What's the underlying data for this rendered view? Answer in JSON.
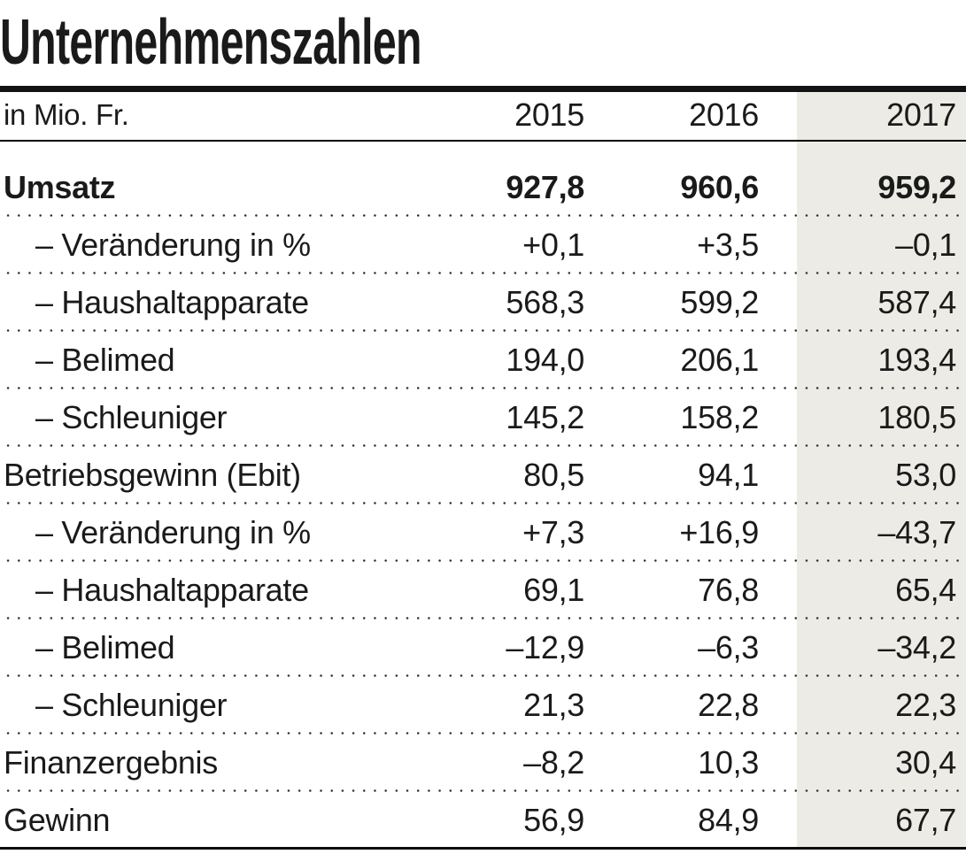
{
  "title": "Unternehmenszahlen",
  "unit_label": "in Mio. Fr.",
  "highlight": {
    "year": "2017",
    "band_color": "#ECEBE5"
  },
  "colors": {
    "text": "#1A1A1A",
    "rules": "#000000"
  },
  "chart_data": {
    "type": "table",
    "title": "Unternehmenszahlen",
    "unit": "Mio. Fr.",
    "columns": [
      "2015",
      "2016",
      "2017"
    ],
    "highlight_column": "2017",
    "rows": [
      {
        "label": "Umsatz",
        "bold": true,
        "indent": false,
        "values": [
          "927,8",
          "960,6",
          "959,2"
        ]
      },
      {
        "label": "– Veränderung in %",
        "bold": false,
        "indent": true,
        "values": [
          "+0,1",
          "+3,5",
          "–0,1"
        ]
      },
      {
        "label": "– Haushaltapparate",
        "bold": false,
        "indent": true,
        "values": [
          "568,3",
          "599,2",
          "587,4"
        ]
      },
      {
        "label": "– Belimed",
        "bold": false,
        "indent": true,
        "values": [
          "194,0",
          "206,1",
          "193,4"
        ]
      },
      {
        "label": "– Schleuniger",
        "bold": false,
        "indent": true,
        "values": [
          "145,2",
          "158,2",
          "180,5"
        ]
      },
      {
        "label": "Betriebsgewinn (Ebit)",
        "bold": false,
        "indent": false,
        "values": [
          "80,5",
          "94,1",
          "53,0"
        ]
      },
      {
        "label": "– Veränderung in %",
        "bold": false,
        "indent": true,
        "values": [
          "+7,3",
          "+16,9",
          "–43,7"
        ]
      },
      {
        "label": "– Haushaltapparate",
        "bold": false,
        "indent": true,
        "values": [
          "69,1",
          "76,8",
          "65,4"
        ]
      },
      {
        "label": "– Belimed",
        "bold": false,
        "indent": true,
        "values": [
          "–12,9",
          "–6,3",
          "–34,2"
        ]
      },
      {
        "label": "– Schleuniger",
        "bold": false,
        "indent": true,
        "values": [
          "21,3",
          "22,8",
          "22,3"
        ]
      },
      {
        "label": "Finanzergebnis",
        "bold": false,
        "indent": false,
        "values": [
          "–8,2",
          "10,3",
          "30,4"
        ]
      },
      {
        "label": "Gewinn",
        "bold": false,
        "indent": false,
        "values": [
          "56,9",
          "84,9",
          "67,7"
        ]
      }
    ]
  }
}
